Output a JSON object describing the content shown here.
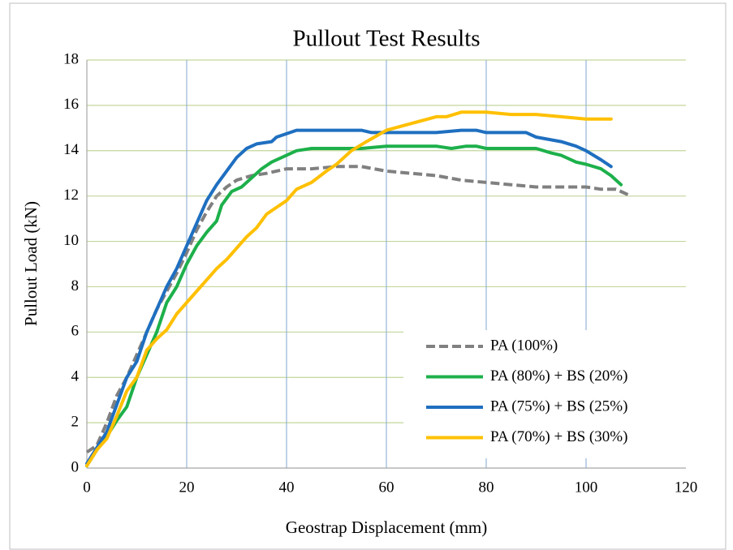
{
  "chart_data": {
    "type": "line",
    "title": "Pullout Test Results",
    "x_label": "Geostrap Displacement (mm)",
    "y_label": "Pullout Load (kN)",
    "xlim": [
      0,
      120
    ],
    "ylim": [
      0,
      18
    ],
    "xticks": [
      0,
      20,
      40,
      60,
      80,
      100,
      120
    ],
    "yticks": [
      0,
      2,
      4,
      6,
      8,
      10,
      12,
      14,
      16,
      18
    ],
    "grid": true,
    "legend": "lower right",
    "series": [
      {
        "name": "PA (100%)",
        "color": "#808080",
        "dashed": true,
        "x": [
          0,
          2,
          4,
          6,
          8,
          10,
          12,
          14,
          16,
          18,
          20,
          22,
          24,
          26,
          28,
          30,
          33,
          36,
          40,
          45,
          50,
          55,
          60,
          65,
          70,
          75,
          80,
          85,
          90,
          95,
          100,
          103,
          106,
          109
        ],
        "values": [
          0.7,
          1,
          2,
          3.2,
          4,
          5,
          6,
          7,
          7.8,
          8.6,
          9.5,
          10.5,
          11.3,
          12,
          12.4,
          12.7,
          12.9,
          13,
          13.2,
          13.2,
          13.3,
          13.3,
          13.1,
          13,
          12.9,
          12.7,
          12.6,
          12.5,
          12.4,
          12.4,
          12.4,
          12.3,
          12.3,
          12
        ]
      },
      {
        "name": "PA (80%) + BS (20%)",
        "color": "#1db04b",
        "dashed": false,
        "x": [
          0,
          2,
          4,
          6,
          8,
          10,
          12,
          14,
          16,
          18,
          20,
          22,
          24,
          26,
          27,
          29,
          31,
          33,
          35,
          37,
          40,
          42,
          45,
          50,
          55,
          60,
          65,
          70,
          73,
          76,
          78,
          80,
          85,
          90,
          93,
          95,
          98,
          100,
          103,
          105,
          107
        ],
        "values": [
          0.1,
          0.8,
          1.4,
          2.1,
          2.7,
          4,
          5,
          6,
          7.3,
          8,
          9,
          9.8,
          10.4,
          10.9,
          11.6,
          12.2,
          12.4,
          12.8,
          13.2,
          13.5,
          13.8,
          14,
          14.1,
          14.1,
          14.1,
          14.2,
          14.2,
          14.2,
          14.1,
          14.2,
          14.2,
          14.1,
          14.1,
          14.1,
          13.9,
          13.8,
          13.5,
          13.4,
          13.2,
          12.9,
          12.5
        ]
      },
      {
        "name": "PA (75%) + BS (25%)",
        "color": "#1f6fc0",
        "dashed": false,
        "x": [
          0,
          2,
          4,
          6,
          8,
          10,
          12,
          14,
          16,
          18,
          20,
          22,
          24,
          26,
          28,
          30,
          32,
          34,
          37,
          38,
          42,
          50,
          55,
          57,
          60,
          65,
          70,
          75,
          78,
          80,
          85,
          88,
          90,
          95,
          98,
          100,
          103,
          105
        ],
        "values": [
          0.2,
          0.9,
          1.6,
          2.8,
          4,
          4.7,
          6,
          7,
          8,
          8.8,
          9.8,
          10.8,
          11.8,
          12.5,
          13.1,
          13.7,
          14.1,
          14.3,
          14.4,
          14.6,
          14.9,
          14.9,
          14.9,
          14.8,
          14.8,
          14.8,
          14.8,
          14.9,
          14.9,
          14.8,
          14.8,
          14.8,
          14.6,
          14.4,
          14.2,
          14,
          13.6,
          13.3
        ]
      },
      {
        "name": "PA (70%) + BS (30%)",
        "color": "#ffc000",
        "dashed": false,
        "x": [
          0,
          2,
          4,
          6,
          8,
          10,
          12,
          14,
          16,
          18,
          20,
          22,
          24,
          26,
          28,
          30,
          32,
          34,
          36,
          38,
          40,
          42,
          45,
          48,
          50,
          53,
          56,
          60,
          65,
          70,
          72,
          75,
          80,
          85,
          90,
          95,
          100,
          105
        ],
        "values": [
          0.1,
          0.8,
          1.3,
          2.3,
          3.4,
          4,
          5.2,
          5.7,
          6.1,
          6.8,
          7.3,
          7.8,
          8.3,
          8.8,
          9.2,
          9.7,
          10.2,
          10.6,
          11.2,
          11.5,
          11.8,
          12.3,
          12.6,
          13.1,
          13.4,
          14,
          14.4,
          14.9,
          15.2,
          15.5,
          15.5,
          15.7,
          15.7,
          15.6,
          15.6,
          15.5,
          15.4,
          15.4
        ]
      }
    ]
  }
}
